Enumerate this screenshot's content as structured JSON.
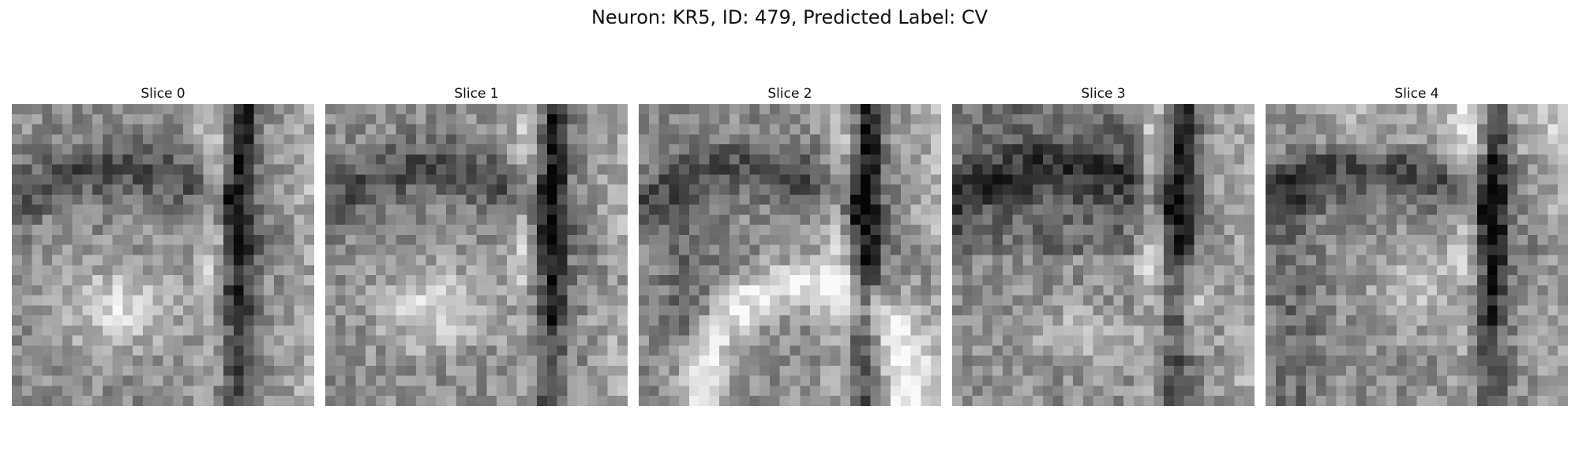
{
  "figure": {
    "title": "Neuron: KR5, ID: 479, Predicted Label: CV"
  },
  "panels": [
    {
      "title": "Slice 0",
      "seed": 11,
      "feature": "lower-bright-blob"
    },
    {
      "title": "Slice 1",
      "seed": 23,
      "feature": "lower-bright-blob"
    },
    {
      "title": "Slice 2",
      "seed": 37,
      "feature": "bright-arc"
    },
    {
      "title": "Slice 3",
      "seed": 41,
      "feature": "lower-right-bright"
    },
    {
      "title": "Slice 4",
      "seed": 59,
      "feature": "center-mid"
    }
  ],
  "image_style": {
    "colormap": "grayscale",
    "grid": 30
  }
}
